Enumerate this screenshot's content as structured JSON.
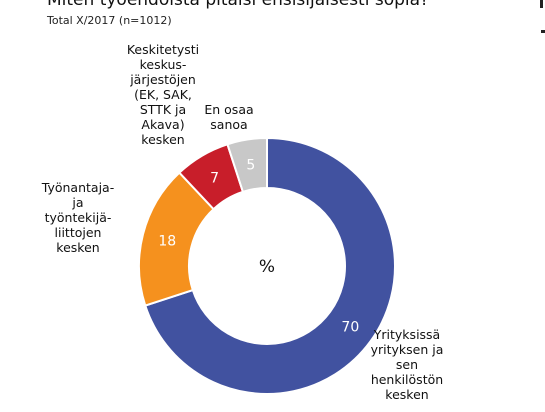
{
  "title": "Miten työehdoista pitäisi ensisijaisesti sopia?",
  "subtitle": "Total X/2017  (n=1012)",
  "center_label": "%",
  "chart_data": {
    "type": "pie",
    "donut": true,
    "unit": "%",
    "slices": [
      {
        "label": "Yrityksissä yrityksen ja sen henkilöstön kesken",
        "value": 70,
        "color": "#4152a0"
      },
      {
        "label": "Työnantaja- ja työntekijä-liittojen kesken",
        "value": 18,
        "color": "#f5911e"
      },
      {
        "label": "Keskitetysti keskus-järjestöjen (EK, SAK, STTK ja Akava) kesken",
        "value": 7,
        "color": "#c81e2a"
      },
      {
        "label": "En osaa sanoa",
        "value": 5,
        "color": "#c8c8c8"
      }
    ]
  },
  "labels": {
    "slice0": "Yrityksissä\nyrityksen ja\nsen\nhenkilöstön\nkesken",
    "slice1": "Työnantaja-\nja\ntyöntekijä-\nliittojen\nkesken",
    "slice2": "Keskitetysti\nkeskus-\njärjestöjen\n(EK, SAK,\nSTTK ja\nAkava)\nkesken",
    "slice3": "En osaa\nsanoa"
  }
}
